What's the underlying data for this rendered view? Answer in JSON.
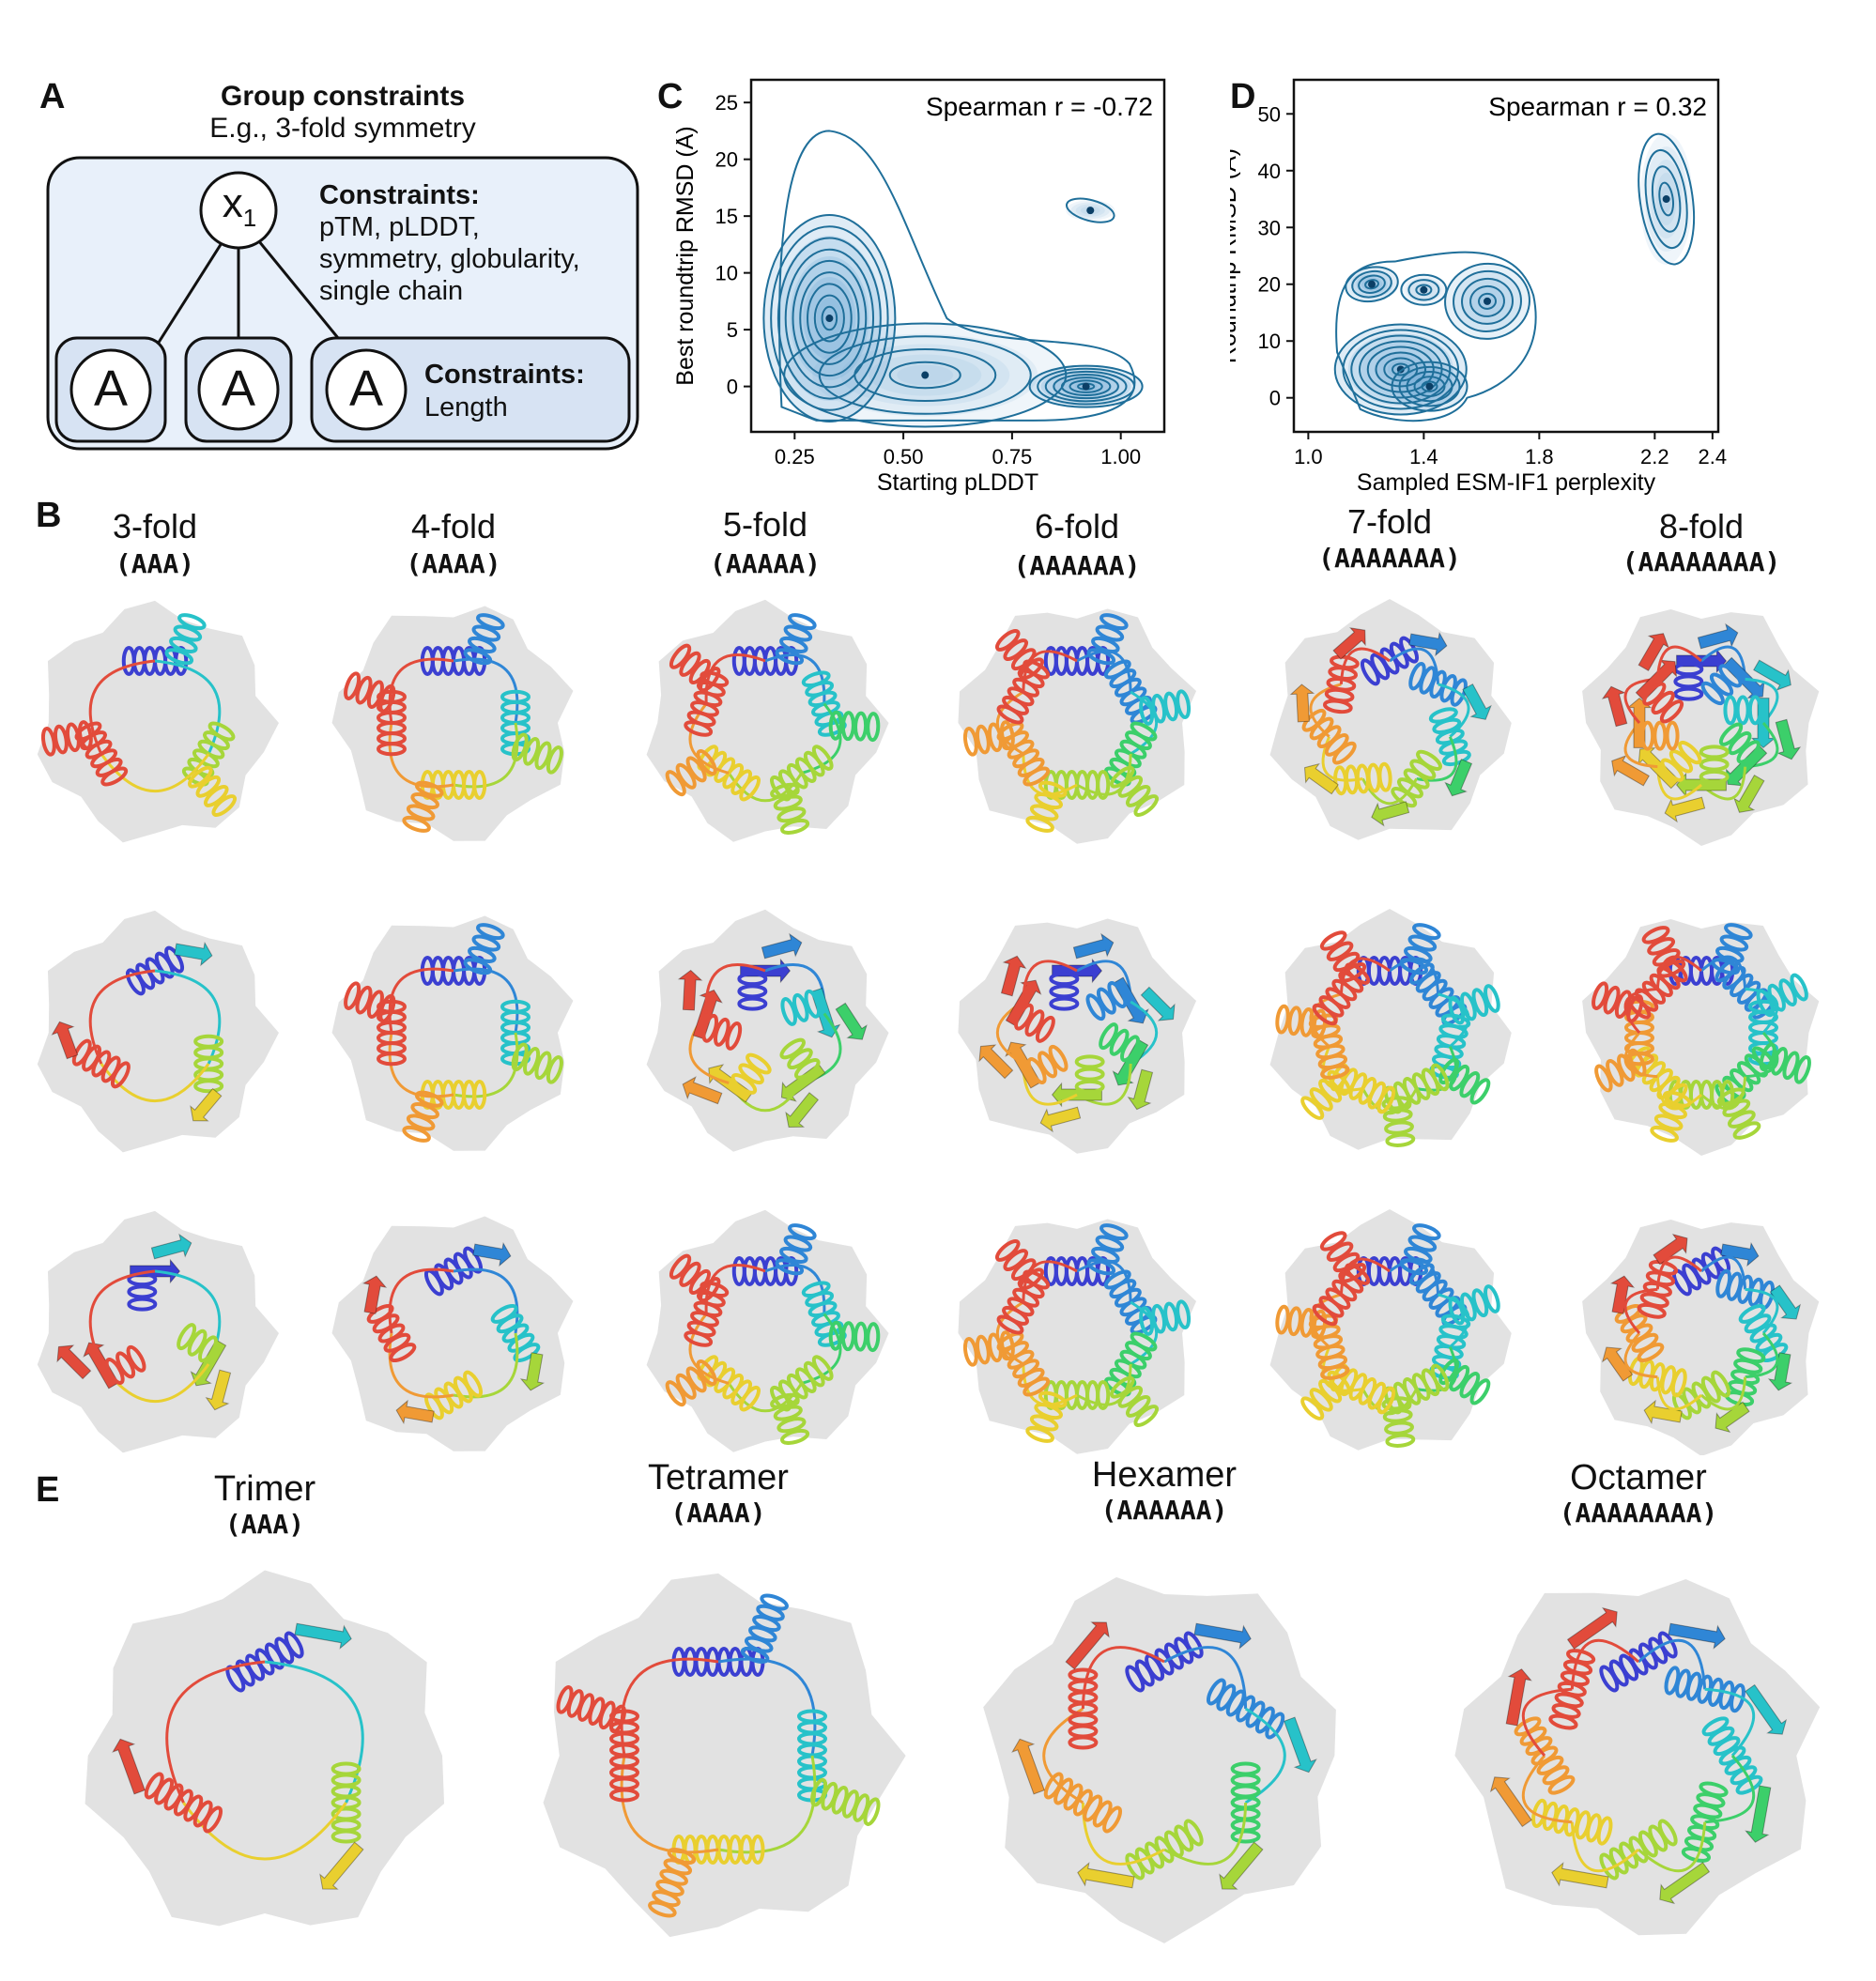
{
  "panel_labels": {
    "a": "A",
    "b": "B",
    "c": "C",
    "d": "D",
    "e": "E"
  },
  "panel_a": {
    "title": "Group constraints",
    "subtitle": "E.g., 3-fold symmetry",
    "root_label": "x",
    "root_subscript": "1",
    "root_constraints_title": "Constraints:",
    "root_constraints_lines": [
      "pTM, pLDDT,",
      "symmetry, globularity,",
      "single chain"
    ],
    "child_label": "A",
    "child_constraints_title": "Constraints:",
    "child_constraints_line": "Length"
  },
  "panel_b": {
    "columns": [
      {
        "title": "3-fold",
        "code": "(AAA)"
      },
      {
        "title": "4-fold",
        "code": "(AAAA)"
      },
      {
        "title": "5-fold",
        "code": "(AAAAA)"
      },
      {
        "title": "6-fold",
        "code": "(AAAAAA)"
      },
      {
        "title": "7-fold",
        "code": "(AAAAAAA)"
      },
      {
        "title": "8-fold",
        "code": "(AAAAAAAA)"
      }
    ]
  },
  "panel_e": {
    "columns": [
      {
        "title": "Trimer",
        "code": "(AAA)"
      },
      {
        "title": "Tetramer",
        "code": "(AAAA)"
      },
      {
        "title": "Hexamer",
        "code": "(AAAAAA)"
      },
      {
        "title": "Octamer",
        "code": "(AAAAAAAA)"
      }
    ]
  },
  "colors": {
    "accent": "#1f6f9a",
    "box_fill": "#e8f0fa",
    "child_fill": "#d7e3f3",
    "shadow": "#e2e2e2",
    "rainbow": [
      "#3b3fd1",
      "#2f86d6",
      "#27c2c9",
      "#3ccf6a",
      "#a6d63a",
      "#e9cf2f",
      "#f09a35",
      "#e24b3b"
    ]
  },
  "chart_data": [
    {
      "type": "contour",
      "panel": "C",
      "annotation": "Spearman r = -0.72",
      "xlabel": "Starting pLDDT",
      "ylabel": "Best roundtrip RMSD (Å)",
      "xlim": [
        0.15,
        1.1
      ],
      "ylim": [
        -4,
        27
      ],
      "xticks": [
        "0.25",
        "0.50",
        "0.75",
        "1.00"
      ],
      "xtick_values": [
        0.25,
        0.5,
        0.75,
        1.0
      ],
      "yticks": [
        "0",
        "5",
        "10",
        "15",
        "20",
        "25"
      ],
      "ytick_values": [
        0,
        5,
        10,
        15,
        20,
        25
      ],
      "density_peaks": [
        {
          "x": 0.33,
          "y": 5,
          "level": "high"
        },
        {
          "x": 0.92,
          "y": 0,
          "level": "high"
        },
        {
          "x": 0.93,
          "y": 15.5,
          "level": "low"
        }
      ]
    },
    {
      "type": "contour",
      "panel": "D",
      "annotation": "Spearman r = 0.32",
      "xlabel": "Sampled ESM-IF1 perplexity",
      "ylabel": "Roundtrip RMSD (Å)",
      "xlim": [
        0.95,
        2.42
      ],
      "ylim": [
        -6,
        56
      ],
      "xticks": [
        "1.0",
        "1.4",
        "1.8",
        "2.2",
        "2.4"
      ],
      "xtick_values": [
        1.0,
        1.4,
        1.8,
        2.2,
        2.4
      ],
      "yticks": [
        "0",
        "10",
        "20",
        "30",
        "40",
        "50"
      ],
      "ytick_values": [
        0,
        10,
        20,
        30,
        40,
        50
      ],
      "density_peaks": [
        {
          "x": 1.22,
          "y": 20,
          "level": "high"
        },
        {
          "x": 1.3,
          "y": 5,
          "level": "high"
        },
        {
          "x": 1.42,
          "y": 2,
          "level": "high"
        },
        {
          "x": 1.62,
          "y": 17,
          "level": "medium"
        },
        {
          "x": 2.24,
          "y": 35,
          "level": "low"
        }
      ]
    }
  ]
}
